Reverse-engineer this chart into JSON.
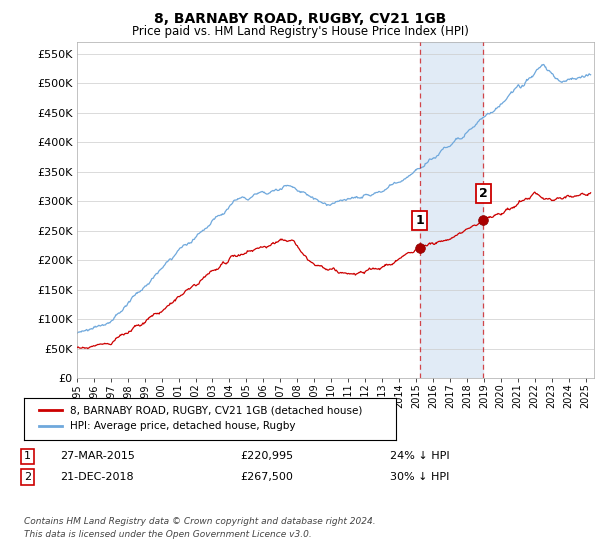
{
  "title": "8, BARNABY ROAD, RUGBY, CV21 1GB",
  "subtitle": "Price paid vs. HM Land Registry's House Price Index (HPI)",
  "ytick_values": [
    0,
    50000,
    100000,
    150000,
    200000,
    250000,
    300000,
    350000,
    400000,
    450000,
    500000,
    550000
  ],
  "ylim": [
    0,
    570000
  ],
  "xlim_start": 1995.0,
  "xlim_end": 2025.5,
  "hpi_color": "#6fa8dc",
  "house_color": "#cc0000",
  "marker1_x": 2015.23,
  "marker2_x": 2018.97,
  "marker1_y": 220995,
  "marker2_y": 267500,
  "shade_color": "#dce8f5",
  "footer": "Contains HM Land Registry data © Crown copyright and database right 2024.\nThis data is licensed under the Open Government Licence v3.0.",
  "legend_house": "8, BARNABY ROAD, RUGBY, CV21 1GB (detached house)",
  "legend_hpi": "HPI: Average price, detached house, Rugby",
  "annotation1_date": "27-MAR-2015",
  "annotation1_price": "£220,995",
  "annotation1_hpi": "24% ↓ HPI",
  "annotation2_date": "21-DEC-2018",
  "annotation2_price": "£267,500",
  "annotation2_hpi": "30% ↓ HPI",
  "title_fontsize": 10,
  "subtitle_fontsize": 8.5,
  "background_color": "#ffffff"
}
